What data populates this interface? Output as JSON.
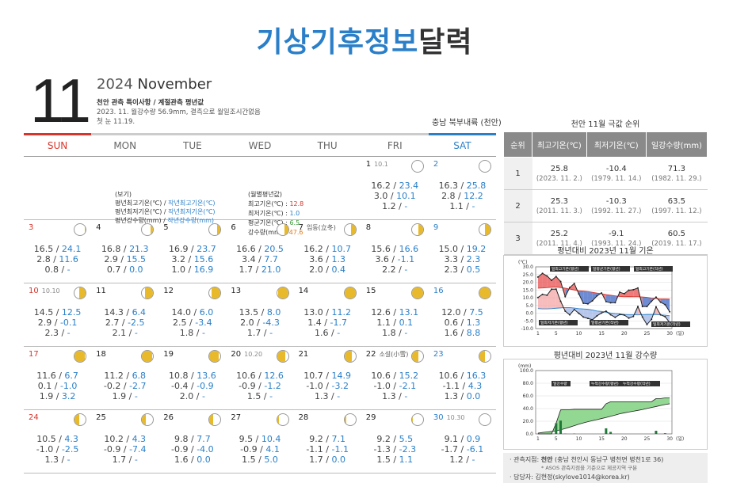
{
  "title": {
    "part1": "기상기후정보",
    "part2": "달력"
  },
  "header": {
    "month_number": "11",
    "year": "2024",
    "month_name": "November",
    "note_title": "천안 관측 특이사항 / 계절관측 평년값",
    "note_lines": [
      "2023. 11. 월강수량 56.9mm, 결측으로 월일조시간없음",
      "첫 눈 11.19."
    ],
    "region": "충남 북부내륙 (천안)"
  },
  "weekdays": [
    "SUN",
    "MON",
    "TUE",
    "WED",
    "THU",
    "FRI",
    "SAT"
  ],
  "legend": {
    "heading": "(보기)",
    "lines": [
      {
        "a": "평년최고기온(℃) / ",
        "b": "작년최고기온(℃)"
      },
      {
        "a": "평년최저기온(℃) / ",
        "b": "작년최저기온(℃)"
      },
      {
        "a": "평년강수량(mm) / ",
        "b": "작년강수량(mm)"
      }
    ]
  },
  "monthly": {
    "heading": "(월별평년값)",
    "max_label": "최고기온(℃) : ",
    "max": "12.8",
    "min_label": "최저기온(℃) : ",
    "min": "1.0",
    "avg_label": "평균기온(℃) : ",
    "avg": "6.5",
    "rain_label": "강수량(mm) : ",
    "rain": "47.6"
  },
  "colors": {
    "accent": "#2a7fc8",
    "sunday": "#d9342b",
    "moon": "#e8b92a"
  },
  "weeks": [
    [
      {
        "empty": true
      },
      {
        "empty": true
      },
      {
        "empty": true
      },
      {
        "empty": true
      },
      {
        "empty": true
      },
      {
        "d": "1",
        "sub": "10.1",
        "moon": 0.0,
        "side": "r",
        "l1a": "16.2 / ",
        "l1b": "23.4",
        "l2a": "3.0 / ",
        "l2b": "10.1",
        "l3a": "1.2 / ",
        "l3b": "-"
      },
      {
        "d": "2",
        "moon": 0.0,
        "side": "r",
        "l1a": "16.3 / ",
        "l1b": "25.8",
        "l2a": "2.8 / ",
        "l2b": "12.2",
        "l3a": "1.1 / ",
        "l3b": "-"
      }
    ],
    [
      {
        "d": "3",
        "moon": 0.1,
        "side": "r",
        "l1a": "16.5 / ",
        "l1b": "24.1",
        "l2a": "2.8 / ",
        "l2b": "11.6",
        "l3a": "0.8 / ",
        "l3b": "-"
      },
      {
        "d": "4",
        "moon": 0.2,
        "side": "r",
        "l1a": "16.8 / ",
        "l1b": "21.3",
        "l2a": "2.9 / ",
        "l2b": "15.5",
        "l3a": "0.7 / ",
        "l3b": "0.0"
      },
      {
        "d": "5",
        "moon": 0.3,
        "side": "r",
        "l1a": "16.9 / ",
        "l1b": "23.7",
        "l2a": "3.2 / ",
        "l2b": "15.6",
        "l3a": "1.0 / ",
        "l3b": "16.9"
      },
      {
        "d": "6",
        "moon": 0.35,
        "side": "r",
        "l1a": "16.6 / ",
        "l1b": "20.5",
        "l2a": "3.4 / ",
        "l2b": "7.7",
        "l3a": "1.7 / ",
        "l3b": "21.0"
      },
      {
        "d": "7",
        "label": "입동(立冬)",
        "moon": 0.4,
        "side": "r",
        "l1a": "16.2 / ",
        "l1b": "10.7",
        "l2a": "3.6 / ",
        "l2b": "1.3",
        "l3a": "2.0 / ",
        "l3b": "0.4"
      },
      {
        "d": "8",
        "moon": 0.45,
        "side": "r",
        "l1a": "15.6 / ",
        "l1b": "16.6",
        "l2a": "3.6 / ",
        "l2b": "-1.1",
        "l3a": "2.2 / ",
        "l3b": "-"
      },
      {
        "d": "9",
        "moon": 0.5,
        "side": "r",
        "l1a": "15.0 / ",
        "l1b": "19.2",
        "l2a": "3.3 / ",
        "l2b": "2.3",
        "l3a": "2.3 / ",
        "l3b": "0.5"
      }
    ],
    [
      {
        "d": "10",
        "sub": "10.10",
        "moon": 0.6,
        "side": "r",
        "l1a": "14.5 / ",
        "l1b": "12.5",
        "l2a": "2.9 / ",
        "l2b": "-0.1",
        "l3a": "2.3 / ",
        "l3b": "-"
      },
      {
        "d": "11",
        "moon": 0.7,
        "side": "r",
        "l1a": "14.3 / ",
        "l1b": "6.4",
        "l2a": "2.7 / ",
        "l2b": "-2.5",
        "l3a": "2.1 / ",
        "l3b": "-"
      },
      {
        "d": "12",
        "moon": 0.8,
        "side": "r",
        "l1a": "14.0 / ",
        "l1b": "6.0",
        "l2a": "2.5 / ",
        "l2b": "-3.4",
        "l3a": "1.8 / ",
        "l3b": "-"
      },
      {
        "d": "13",
        "moon": 0.9,
        "side": "r",
        "l1a": "13.5 / ",
        "l1b": "8.0",
        "l2a": "2.0 / ",
        "l2b": "-4.3",
        "l3a": "1.7 / ",
        "l3b": "-"
      },
      {
        "d": "14",
        "moon": 0.95,
        "side": "r",
        "l1a": "13.0 / ",
        "l1b": "11.2",
        "l2a": "1.4 / ",
        "l2b": "-1.7",
        "l3a": "1.6 / ",
        "l3b": "-"
      },
      {
        "d": "15",
        "moon": 1.0,
        "side": "r",
        "l1a": "12.6 / ",
        "l1b": "13.1",
        "l2a": "1.1 / ",
        "l2b": "0.1",
        "l3a": "1.8 / ",
        "l3b": "-"
      },
      {
        "d": "16",
        "moon": 1.0,
        "side": "r",
        "l1a": "12.0 / ",
        "l1b": "7.5",
        "l2a": "0.6 / ",
        "l2b": "1.3",
        "l3a": "1.6 / ",
        "l3b": "8.8"
      }
    ],
    [
      {
        "d": "17",
        "moon": 0.95,
        "side": "l",
        "l1a": "11.6 / ",
        "l1b": "6.7",
        "l2a": "0.1 / ",
        "l2b": "-1.0",
        "l3a": "1.9 / ",
        "l3b": "3.2"
      },
      {
        "d": "18",
        "moon": 0.9,
        "side": "l",
        "l1a": "11.2 / ",
        "l1b": "6.8",
        "l2a": "-0.2 / ",
        "l2b": "-2.7",
        "l3a": "1.9 / ",
        "l3b": "-"
      },
      {
        "d": "19",
        "moon": 0.85,
        "side": "l",
        "l1a": "10.8 / ",
        "l1b": "13.6",
        "l2a": "-0.4 / ",
        "l2b": "-0.9",
        "l3a": "2.0 / ",
        "l3b": "-"
      },
      {
        "d": "20",
        "sub": "10.20",
        "moon": 0.75,
        "side": "l",
        "l1a": "10.6 / ",
        "l1b": "12.6",
        "l2a": "-0.9 / ",
        "l2b": "-1.2",
        "l3a": "1.5 / ",
        "l3b": "-"
      },
      {
        "d": "21",
        "moon": 0.65,
        "side": "l",
        "l1a": "10.7 / ",
        "l1b": "14.9",
        "l2a": "-1.0 / ",
        "l2b": "-3.2",
        "l3a": "1.3 / ",
        "l3b": "-"
      },
      {
        "d": "22",
        "label": "소설(小雪)",
        "moon": 0.55,
        "side": "l",
        "l1a": "10.6 / ",
        "l1b": "15.2",
        "l2a": "-1.0 / ",
        "l2b": "-2.1",
        "l3a": "1.3 / ",
        "l3b": "-"
      },
      {
        "d": "23",
        "moon": 0.5,
        "side": "l",
        "l1a": "10.6 / ",
        "l1b": "16.3",
        "l2a": "-1.1 / ",
        "l2b": "4.3",
        "l3a": "1.3 / ",
        "l3b": "0.0"
      }
    ],
    [
      {
        "d": "24",
        "moon": 0.4,
        "side": "l",
        "l1a": "10.5 / ",
        "l1b": "4.3",
        "l2a": "-1.0 / ",
        "l2b": "-2.5",
        "l3a": "1.3 / ",
        "l3b": "-"
      },
      {
        "d": "25",
        "moon": 0.35,
        "side": "l",
        "l1a": "10.2 / ",
        "l1b": "4.3",
        "l2a": "-0.9 / ",
        "l2b": "-7.4",
        "l3a": "1.7 / ",
        "l3b": "-"
      },
      {
        "d": "26",
        "moon": 0.3,
        "side": "l",
        "l1a": "9.8 / ",
        "l1b": "7.7",
        "l2a": "-0.9 / ",
        "l2b": "-4.0",
        "l3a": "1.6 / ",
        "l3b": "0.0"
      },
      {
        "d": "27",
        "moon": 0.2,
        "side": "l",
        "l1a": "9.5 / ",
        "l1b": "10.4",
        "l2a": "-0.9 / ",
        "l2b": "4.1",
        "l3a": "1.5 / ",
        "l3b": "5.0"
      },
      {
        "d": "28",
        "moon": 0.15,
        "side": "l",
        "l1a": "9.2 / ",
        "l1b": "7.1",
        "l2a": "-1.1 / ",
        "l2b": "-1.1",
        "l3a": "1.7 / ",
        "l3b": "0.0"
      },
      {
        "d": "29",
        "moon": 0.05,
        "side": "l",
        "l1a": "9.2 / ",
        "l1b": "5.5",
        "l2a": "-1.3 / ",
        "l2b": "-2.3",
        "l3a": "1.5 / ",
        "l3b": "1.1"
      },
      {
        "d": "30",
        "sub": "10.30",
        "moon": 0.0,
        "side": "l",
        "l1a": "9.1 / ",
        "l1b": "0.9",
        "l2a": "-1.7 / ",
        "l2b": "-6.1",
        "l3a": "1.2 / ",
        "l3b": "-"
      }
    ]
  ],
  "ranking": {
    "title": "천안 11월 극값 순위",
    "headers": [
      "순위",
      "최고기온(℃)",
      "최저기온(℃)",
      "일강수량(mm)"
    ],
    "rows": [
      {
        "rank": "1",
        "c1": "25.8",
        "c1d": "(2023. 11. 2.)",
        "c2": "-10.4",
        "c2d": "(1979. 11. 14.)",
        "c3": "71.3",
        "c3d": "(1982. 11. 29.)"
      },
      {
        "rank": "2",
        "c1": "25.3",
        "c1d": "(2011. 11. 3.)",
        "c2": "-10.3",
        "c2d": "(1992. 11. 27.)",
        "c3": "63.5",
        "c3d": "(1997. 11. 12.)"
      },
      {
        "rank": "3",
        "c1": "25.2",
        "c1d": "(2011. 11. 4.)",
        "c2": "-9.1",
        "c2d": "(1993. 11. 24.)",
        "c3": "60.5",
        "c3d": "(2019. 11. 17.)"
      }
    ]
  },
  "temp_chart": {
    "title": "평년대비 2023년 11월 기온",
    "unit": "(℃)",
    "xunit": "(일)",
    "yticks": [
      "30.0",
      "25.0",
      "20.0",
      "15.0",
      "10.0",
      "5.0",
      "0.0",
      "-5.0",
      "-10.0"
    ],
    "xticks": [
      "1",
      "5",
      "10",
      "15",
      "20",
      "25",
      "30"
    ],
    "labels": [
      "일최고기온(평년)",
      "일평균기온(평년)",
      "일최고기온(작년)",
      "일최저기온(평년)",
      "일평균기온(작년)",
      "일최저기온(작년)"
    ]
  },
  "temp_chart_data": {
    "type": "line",
    "x": [
      1,
      2,
      3,
      4,
      5,
      6,
      7,
      8,
      9,
      10,
      11,
      12,
      13,
      14,
      15,
      16,
      17,
      18,
      19,
      20,
      21,
      22,
      23,
      24,
      25,
      26,
      27,
      28,
      29,
      30
    ],
    "series": [
      {
        "name": "일최고기온(평년)",
        "values": [
          16.2,
          16.3,
          16.5,
          16.8,
          16.9,
          16.6,
          16.2,
          15.6,
          15.0,
          14.5,
          14.3,
          14.0,
          13.5,
          13.0,
          12.6,
          12.0,
          11.6,
          11.2,
          10.8,
          10.6,
          10.7,
          10.6,
          10.6,
          10.5,
          10.2,
          9.8,
          9.5,
          9.2,
          9.2,
          9.1
        ]
      },
      {
        "name": "일최고기온(작년)",
        "values": [
          23.4,
          25.8,
          24.1,
          21.3,
          23.7,
          20.5,
          10.7,
          16.6,
          19.2,
          12.5,
          6.4,
          6.0,
          8.0,
          11.2,
          13.1,
          7.5,
          6.7,
          6.8,
          13.6,
          12.6,
          14.9,
          15.2,
          16.3,
          4.3,
          4.3,
          7.7,
          10.4,
          7.1,
          5.5,
          0.9
        ]
      },
      {
        "name": "일최저기온(평년)",
        "values": [
          3.0,
          2.8,
          2.8,
          2.9,
          3.2,
          3.4,
          3.6,
          3.6,
          3.3,
          2.9,
          2.7,
          2.5,
          2.0,
          1.4,
          1.1,
          0.6,
          0.1,
          -0.2,
          -0.4,
          -0.9,
          -1.0,
          -1.0,
          -1.1,
          -1.0,
          -0.9,
          -0.9,
          -0.9,
          -1.1,
          -1.3,
          -1.7
        ]
      },
      {
        "name": "일최저기온(작년)",
        "values": [
          10.1,
          12.2,
          11.6,
          15.5,
          15.6,
          7.7,
          1.3,
          -1.1,
          2.3,
          -0.1,
          -2.5,
          -3.4,
          -4.3,
          -1.7,
          0.1,
          1.3,
          -1.0,
          -2.7,
          -0.9,
          -1.2,
          -3.2,
          -2.1,
          4.3,
          -2.5,
          -7.4,
          -4.0,
          4.1,
          -1.1,
          -2.3,
          -6.1
        ]
      }
    ],
    "ylim": [
      -10,
      30
    ]
  },
  "rain_chart": {
    "title": "평년대비 2023년 11월 강수량",
    "unit": "(mm)",
    "xunit": "(일)",
    "yticks": [
      "100.0",
      "80.0",
      "60.0",
      "40.0",
      "20.0",
      "0.0"
    ],
    "xticks": [
      "1",
      "5",
      "10",
      "15",
      "20",
      "25",
      "30"
    ],
    "labels": [
      "일강수량",
      "누적강수량(평년)",
      "누적강수량(작년)"
    ],
    "footnote": "* ASOS 관측지점을 기준으로 제공지역 구분"
  },
  "rain_chart_data": {
    "type": "area",
    "x": [
      1,
      2,
      3,
      4,
      5,
      6,
      7,
      8,
      9,
      10,
      11,
      12,
      13,
      14,
      15,
      16,
      17,
      18,
      19,
      20,
      21,
      22,
      23,
      24,
      25,
      26,
      27,
      28,
      29,
      30
    ],
    "daily": [
      0,
      0,
      0,
      0,
      16.9,
      21.0,
      0.4,
      0,
      0.5,
      0,
      0,
      0,
      0,
      0,
      0,
      8.8,
      3.2,
      0,
      0,
      0,
      0,
      0,
      0,
      0,
      0,
      0,
      5.0,
      0,
      1.1,
      0
    ],
    "series": [
      {
        "name": "누적강수량(평년)",
        "values": [
          1.2,
          2.3,
          3.1,
          3.8,
          4.8,
          6.5,
          8.5,
          10.7,
          13.0,
          15.3,
          17.4,
          19.2,
          20.9,
          22.5,
          24.3,
          25.9,
          27.8,
          29.7,
          31.7,
          33.2,
          34.5,
          35.8,
          37.1,
          38.4,
          40.1,
          41.7,
          43.2,
          44.9,
          46.4,
          47.6
        ]
      },
      {
        "name": "누적강수량(작년)",
        "values": [
          0,
          0,
          0,
          0,
          16.9,
          37.9,
          38.3,
          38.3,
          38.8,
          38.8,
          38.8,
          38.8,
          38.8,
          38.8,
          38.8,
          47.6,
          50.8,
          50.8,
          50.8,
          50.8,
          50.8,
          50.8,
          50.8,
          50.8,
          50.8,
          50.8,
          55.8,
          55.8,
          56.9,
          56.9
        ]
      }
    ],
    "ylim": [
      0,
      100
    ]
  },
  "info": {
    "station_label": "관측지점: ",
    "station": "천안",
    "station_detail": " (충남 천안시 동남구 병천면 병천1로 36)",
    "contact": "담당자: 김현정(skylove1014@korea.kr)"
  }
}
